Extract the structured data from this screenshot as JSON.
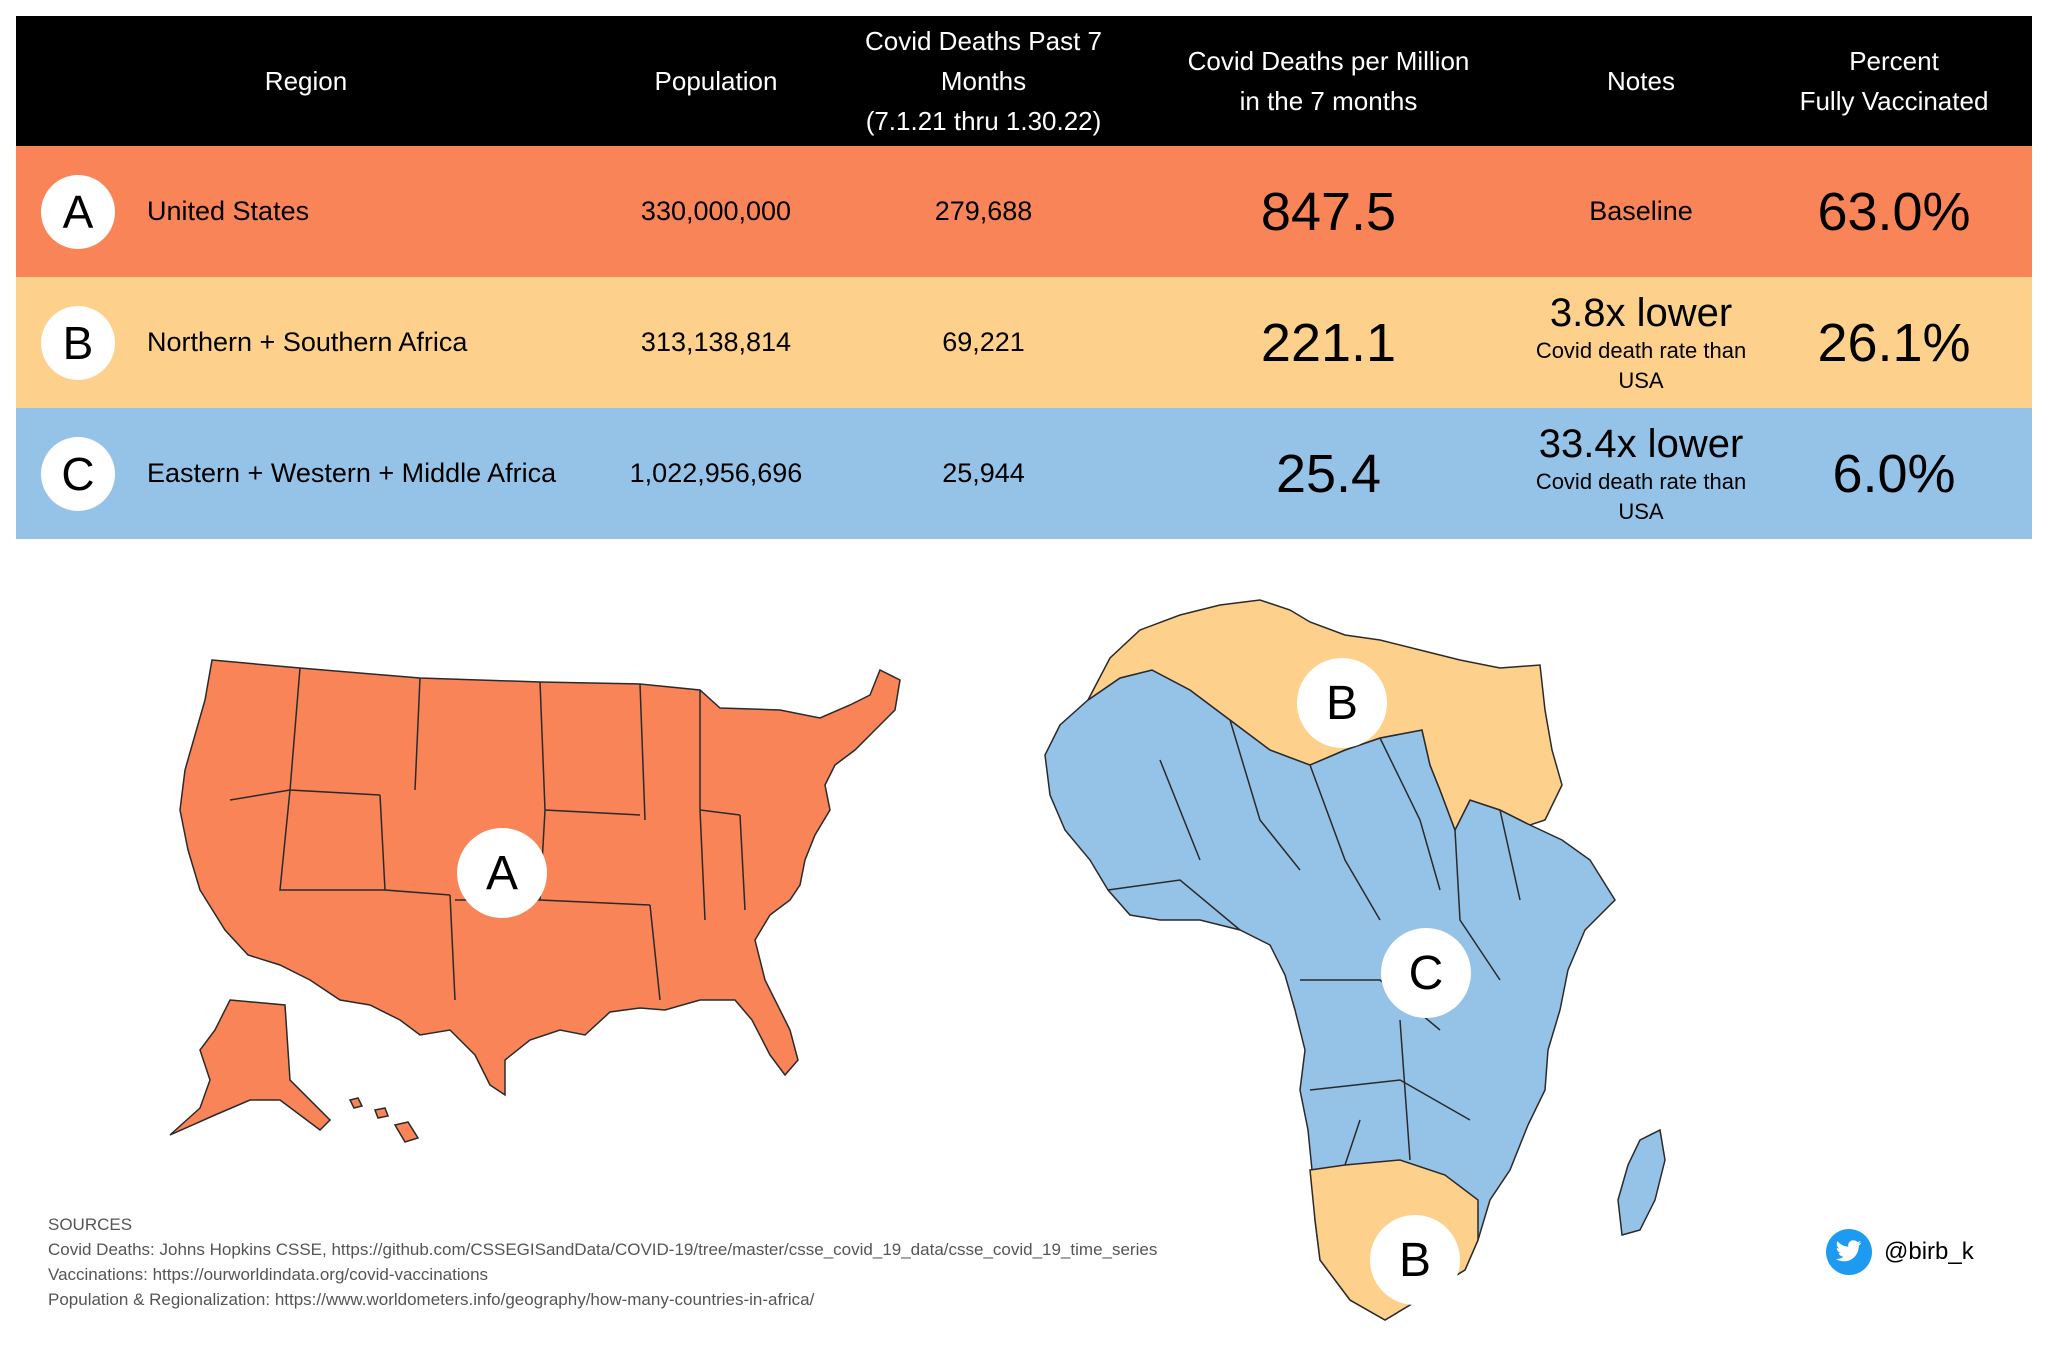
{
  "chart_data": {
    "type": "table",
    "columns": [
      "Region",
      "Population",
      "Covid Deaths Past 7 Months\n(7.1.21 thru 1.30.22)",
      "Covid Deaths per Million\nin the 7 months",
      "Notes",
      "Percent\nFully Vaccinated"
    ],
    "column_lines": {
      "region": "Region",
      "population": "Population",
      "deaths_1": "Covid Deaths Past 7 Months",
      "deaths_2": "(7.1.21 thru 1.30.22)",
      "per_1": "Covid Deaths per Million",
      "per_2": "in the 7 months",
      "notes": "Notes",
      "vax_1": "Percent",
      "vax_2": "Fully Vaccinated"
    },
    "rows": [
      {
        "label": "A",
        "region": "United States",
        "population": "330,000,000",
        "deaths": "279,688",
        "per_million": "847.5",
        "note_main": "Baseline",
        "note_sub": "",
        "vaccinated": "63.0%",
        "color": "#f88458"
      },
      {
        "label": "B",
        "region": "Northern + Southern Africa",
        "population": "313,138,814",
        "deaths": "69,221",
        "per_million": "221.1",
        "note_main": "3.8x lower",
        "note_sub": "Covid death rate than USA",
        "vaccinated": "26.1%",
        "color": "#fdd08c"
      },
      {
        "label": "C",
        "region": "Eastern + Western + Middle Africa",
        "population": "1,022,956,696",
        "deaths": "25,944",
        "per_million": "25.4",
        "note_main": "33.4x lower",
        "note_sub": "Covid death rate than USA",
        "vaccinated": "6.0%",
        "color": "#95c2e7"
      }
    ]
  },
  "maps": {
    "usa_label": "A",
    "africa_north_label": "B",
    "africa_south_label": "B",
    "africa_central_label": "C",
    "colors": {
      "a": "#f88458",
      "b": "#fdd08c",
      "c": "#95c2e7"
    }
  },
  "sources": {
    "title": "SOURCES",
    "deaths": "Covid Deaths: Johns Hopkins CSSE, https://github.com/CSSEGISandData/COVID-19/tree/master/csse_covid_19_data/csse_covid_19_time_series",
    "vaccinations": "Vaccinations: https://ourworldindata.org/covid-vaccinations",
    "population": "Population & Regionalization: https://www.worldometers.info/geography/how-many-countries-in-africa/"
  },
  "footer": {
    "handle": "@birb_k",
    "icon": "twitter-bird-icon"
  }
}
